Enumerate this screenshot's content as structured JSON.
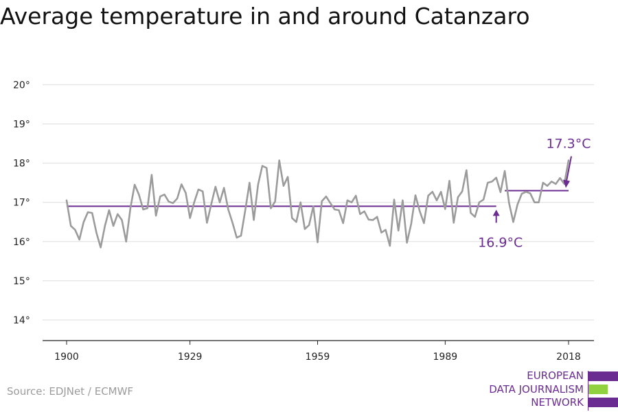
{
  "title": "Average temperature in and around Catanzaro",
  "source": "Source: EDJNet / ECMWF",
  "logo": {
    "lines": [
      "EUROPEAN",
      "DATA JOURNALISM",
      "NETWORK"
    ],
    "colors": {
      "purple": "#6a2c91",
      "green": "#8fd13f"
    }
  },
  "colors": {
    "series": "#9b9b9b",
    "average": "#6a2c91",
    "grid": "#dddddd",
    "axis": "#222222",
    "text": "#222222"
  },
  "chart_data": {
    "type": "line",
    "title": "Average temperature in and around Catanzaro",
    "xlabel": "",
    "ylabel": "",
    "ylim": [
      13.5,
      20.5
    ],
    "xlim": [
      1900,
      2018
    ],
    "y_ticks": [
      14,
      15,
      16,
      17,
      18,
      19,
      20
    ],
    "y_tick_labels": [
      "14°",
      "15°",
      "16°",
      "17°",
      "18°",
      "19°",
      "20°"
    ],
    "x_ticks": [
      1900,
      1929,
      1959,
      1989,
      2018
    ],
    "x_tick_labels": [
      "1900",
      "1929",
      "1959",
      "1989",
      "2018"
    ],
    "grid": true,
    "series": [
      {
        "x": [
          1900,
          1901,
          1902,
          1903,
          1904,
          1905,
          1906,
          1907,
          1908,
          1909,
          1910,
          1911,
          1912,
          1913,
          1914,
          1915,
          1916,
          1917,
          1918,
          1919,
          1920,
          1921,
          1922,
          1923,
          1924,
          1925,
          1926,
          1927,
          1928,
          1929,
          1930,
          1931,
          1932,
          1933,
          1934,
          1935,
          1936,
          1937,
          1938,
          1939,
          1940,
          1941,
          1942,
          1943,
          1944,
          1945,
          1946,
          1947,
          1948,
          1949,
          1950,
          1951,
          1952,
          1953,
          1954,
          1955,
          1956,
          1957,
          1958,
          1959,
          1960,
          1961,
          1962,
          1963,
          1964,
          1965,
          1966,
          1967,
          1968,
          1969,
          1970,
          1971,
          1972,
          1973,
          1974,
          1975,
          1976,
          1977,
          1978,
          1979,
          1980,
          1981,
          1982,
          1983,
          1984,
          1985,
          1986,
          1987,
          1988,
          1989,
          1990,
          1991,
          1992,
          1993,
          1994,
          1995,
          1996,
          1997,
          1998,
          1999,
          2000,
          2001,
          2002,
          2003,
          2004,
          2005,
          2006,
          2007,
          2008,
          2009,
          2010,
          2011,
          2012,
          2013,
          2014,
          2015,
          2016,
          2017,
          2018
        ],
        "values": [
          17.05,
          16.4,
          16.3,
          16.05,
          16.5,
          16.75,
          16.73,
          16.23,
          15.85,
          16.4,
          16.8,
          16.4,
          16.7,
          16.55,
          16.0,
          16.85,
          17.45,
          17.2,
          16.82,
          16.85,
          17.7,
          16.66,
          17.15,
          17.2,
          17.02,
          16.98,
          17.1,
          17.46,
          17.24,
          16.6,
          17.0,
          17.33,
          17.28,
          16.48,
          16.95,
          17.4,
          17.0,
          17.37,
          16.82,
          16.48,
          16.1,
          16.15,
          16.8,
          17.5,
          16.55,
          17.45,
          17.93,
          17.88,
          16.85,
          17.02,
          18.07,
          17.42,
          17.65,
          16.6,
          16.5,
          17.0,
          16.32,
          16.42,
          16.9,
          15.98,
          17.03,
          17.15,
          16.98,
          16.82,
          16.8,
          16.47,
          17.05,
          17.0,
          17.17,
          16.7,
          16.77,
          16.56,
          16.55,
          16.63,
          16.23,
          16.3,
          15.89,
          17.07,
          16.28,
          17.05,
          15.97,
          16.45,
          17.18,
          16.78,
          16.47,
          17.17,
          17.27,
          17.05,
          17.27,
          16.83,
          17.55,
          16.48,
          17.13,
          17.28,
          17.82,
          16.73,
          16.63,
          17.0,
          17.07,
          17.5,
          17.53,
          17.63,
          17.26,
          17.8,
          16.99,
          16.5,
          16.95,
          17.22,
          17.27,
          17.23,
          17.0,
          17.0,
          17.5,
          17.42,
          17.53,
          17.47,
          17.62,
          17.47,
          18.07
        ]
      }
    ],
    "reference_lines": [
      {
        "value": 16.9,
        "x_start": 1900,
        "x_end": 2001,
        "label": "16.9°C"
      },
      {
        "value": 17.3,
        "x_start": 2003,
        "x_end": 2018,
        "label": "17.3°C"
      }
    ]
  }
}
